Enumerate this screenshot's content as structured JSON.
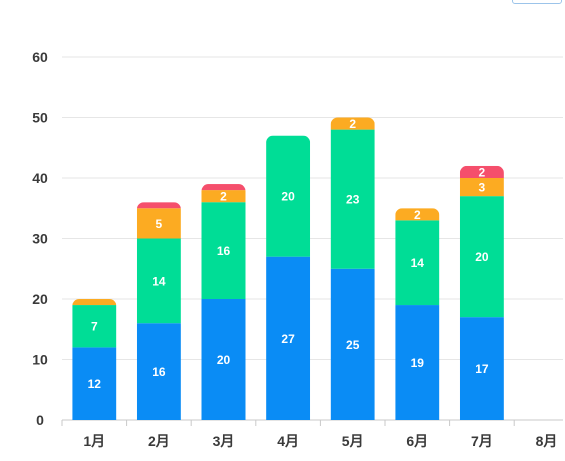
{
  "chart_data": {
    "type": "bar",
    "stacked": true,
    "categories": [
      "1月",
      "2月",
      "3月",
      "4月",
      "5月",
      "6月",
      "7月",
      "8月"
    ],
    "series": [
      {
        "color": "#0a8cf5",
        "values": [
          12,
          16,
          20,
          27,
          25,
          19,
          17,
          null
        ]
      },
      {
        "color": "#00dd96",
        "values": [
          7,
          14,
          16,
          20,
          23,
          14,
          20,
          null
        ]
      },
      {
        "color": "#fcab22",
        "values": [
          1,
          5,
          2,
          null,
          2,
          2,
          3,
          null
        ]
      },
      {
        "color": "#f54f6c",
        "values": [
          null,
          1,
          1,
          null,
          null,
          null,
          2,
          null
        ]
      }
    ],
    "value_labels": [
      [
        "12",
        "7",
        "",
        ""
      ],
      [
        "16",
        "14",
        "5",
        ""
      ],
      [
        "20",
        "16",
        "2",
        ""
      ],
      [
        "27",
        "20",
        "",
        ""
      ],
      [
        "25",
        "23",
        "2",
        ""
      ],
      [
        "19",
        "14",
        "2",
        ""
      ],
      [
        "17",
        "20",
        "3",
        "2"
      ],
      [
        "",
        "",
        "",
        ""
      ]
    ],
    "yticks": [
      "0",
      "10",
      "20",
      "30",
      "40",
      "50",
      "60"
    ],
    "ylim": [
      0,
      60
    ],
    "grid": true,
    "legend": "none"
  }
}
